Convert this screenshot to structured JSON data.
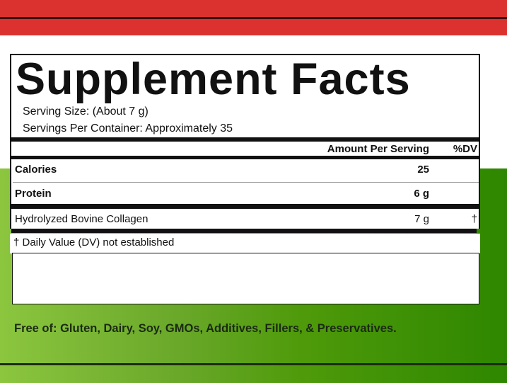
{
  "colors": {
    "top_band": "#dc322f",
    "bottom_band": "#4e9a0a"
  },
  "label": {
    "title": "Supplement Facts",
    "serving_size": "Serving Size: (About 7 g)",
    "servings_per_container": "Servings Per Container: Approximately 35",
    "headers": {
      "amount": "Amount Per Serving",
      "dv": "%DV"
    },
    "rows": [
      {
        "name": "Calories",
        "amount": "25",
        "dv": ""
      },
      {
        "name": "Protein",
        "amount": "6 g",
        "dv": ""
      },
      {
        "name": "Hydrolyzed Bovine Collagen",
        "amount": "7 g",
        "dv": "†"
      }
    ],
    "footnote": "† Daily Value (DV) not established"
  },
  "free_of": "Free of: Gluten, Dairy, Soy, GMOs, Additives, Fillers, & Preservatives."
}
